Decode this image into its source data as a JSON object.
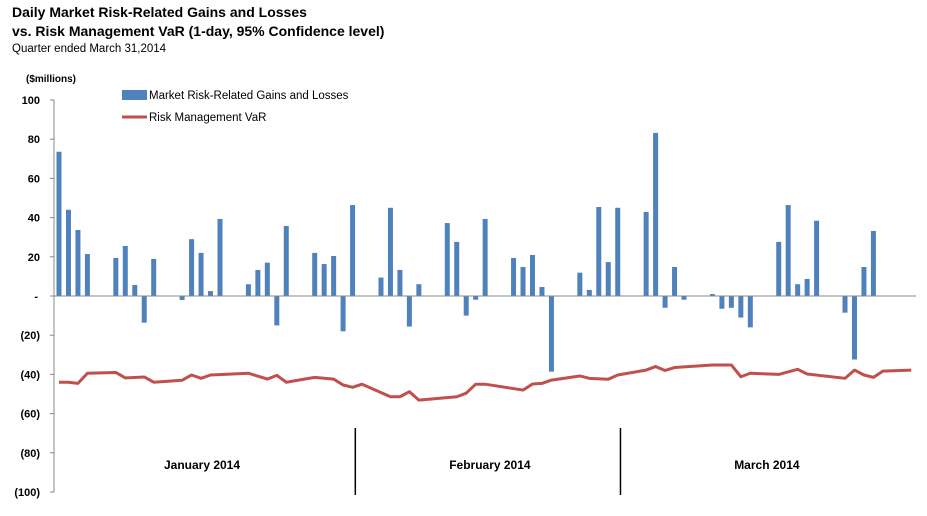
{
  "chart_data": {
    "type": "bar+line",
    "title": "Daily Market Risk-Related Gains and Losses",
    "title_line2": "vs. Risk Management VaR (1-day, 95% Confidence level)",
    "subtitle": "Quarter ended March 31,2014",
    "ylabel": "($millions)",
    "ylim": [
      -100,
      100
    ],
    "yticks": [
      "100",
      "80",
      "60",
      "40",
      "20",
      "-",
      "(20)",
      "(40)",
      "(60)",
      "(80)",
      "(100)"
    ],
    "ytick_values": [
      100,
      80,
      60,
      40,
      20,
      0,
      -20,
      -40,
      -60,
      -80,
      -100
    ],
    "x_slots": 91,
    "months": [
      {
        "label": "January 2014",
        "start": 0,
        "end": 31.5
      },
      {
        "label": "February 2014",
        "start": 31.5,
        "end": 59.5
      },
      {
        "label": "March 2014",
        "start": 59.5,
        "end": 90
      }
    ],
    "legend": {
      "placement": "top-left",
      "entries": [
        "Market Risk-Related Gains and Losses",
        "Risk Management VaR"
      ]
    },
    "series": [
      {
        "name": "Market Risk-Related Gains and Losses",
        "type": "bar",
        "color": "#4f81bd",
        "points": [
          [
            0,
            73.6
          ],
          [
            1,
            44
          ],
          [
            2,
            33.7
          ],
          [
            3,
            21.4
          ],
          [
            6,
            19.4
          ],
          [
            7,
            25.5
          ],
          [
            8,
            5.6
          ],
          [
            9,
            -13.6
          ],
          [
            10,
            18.9
          ],
          [
            13,
            -2
          ],
          [
            14,
            29
          ],
          [
            15,
            22
          ],
          [
            16,
            2.5
          ],
          [
            17,
            39.3
          ],
          [
            20,
            6
          ],
          [
            21,
            13.3
          ],
          [
            22,
            17
          ],
          [
            23,
            -15
          ],
          [
            24,
            35.7
          ],
          [
            27,
            22
          ],
          [
            28,
            16.3
          ],
          [
            29,
            20.4
          ],
          [
            30,
            -18
          ],
          [
            31,
            46.4
          ],
          [
            34,
            9.4
          ],
          [
            35,
            45
          ],
          [
            36,
            13.3
          ],
          [
            37,
            -15.6
          ],
          [
            38,
            6
          ],
          [
            41,
            37.2
          ],
          [
            42,
            27.6
          ],
          [
            43,
            -10
          ],
          [
            44,
            -1.9
          ],
          [
            45,
            39.3
          ],
          [
            48,
            19.4
          ],
          [
            49,
            14.8
          ],
          [
            50,
            20.9
          ],
          [
            51,
            4.6
          ],
          [
            52,
            -38.6
          ],
          [
            55,
            11.9
          ],
          [
            56,
            3.1
          ],
          [
            57,
            45.4
          ],
          [
            58,
            17.3
          ],
          [
            59,
            45
          ],
          [
            62,
            42.9
          ],
          [
            63,
            83.2
          ],
          [
            64,
            -6
          ],
          [
            65,
            14.8
          ],
          [
            66,
            -1.9
          ],
          [
            69,
            1
          ],
          [
            70,
            -6.5
          ],
          [
            71,
            -6
          ],
          [
            72,
            -11
          ],
          [
            73,
            -16
          ],
          [
            76,
            27.6
          ],
          [
            77,
            46.4
          ],
          [
            78,
            6
          ],
          [
            79,
            8.7
          ],
          [
            80,
            38.4
          ],
          [
            83,
            -8.5
          ],
          [
            84,
            -32.4
          ],
          [
            85,
            14.8
          ],
          [
            86,
            33.2
          ]
        ]
      },
      {
        "name": "Risk Management VaR",
        "type": "line",
        "color": "#c0504d",
        "points": [
          [
            0,
            -44
          ],
          [
            1,
            -44
          ],
          [
            2,
            -44.6
          ],
          [
            3,
            -39.4
          ],
          [
            6,
            -39
          ],
          [
            7,
            -41.8
          ],
          [
            9,
            -41.3
          ],
          [
            10,
            -44
          ],
          [
            13,
            -43
          ],
          [
            14,
            -40.3
          ],
          [
            15,
            -42
          ],
          [
            16,
            -40.3
          ],
          [
            20,
            -39.4
          ],
          [
            22,
            -42.4
          ],
          [
            23,
            -40.5
          ],
          [
            24,
            -44
          ],
          [
            27,
            -41.5
          ],
          [
            29,
            -42.4
          ],
          [
            30,
            -45.4
          ],
          [
            31,
            -46.6
          ],
          [
            32,
            -45
          ],
          [
            35,
            -51.4
          ],
          [
            36,
            -51.4
          ],
          [
            37,
            -48.8
          ],
          [
            38,
            -53.1
          ],
          [
            42,
            -51.4
          ],
          [
            43,
            -49.6
          ],
          [
            44,
            -45
          ],
          [
            45,
            -45
          ],
          [
            49,
            -48
          ],
          [
            50,
            -44.9
          ],
          [
            51,
            -44.6
          ],
          [
            52,
            -42.9
          ],
          [
            55,
            -40.8
          ],
          [
            56,
            -42
          ],
          [
            58,
            -42.5
          ],
          [
            59,
            -40.3
          ],
          [
            62,
            -37.8
          ],
          [
            63,
            -36
          ],
          [
            64,
            -38
          ],
          [
            65,
            -36.5
          ],
          [
            69,
            -35.2
          ],
          [
            71,
            -35.2
          ],
          [
            72,
            -41.2
          ],
          [
            73,
            -39.4
          ],
          [
            76,
            -40
          ],
          [
            78,
            -37.4
          ],
          [
            79,
            -39.8
          ],
          [
            83,
            -42
          ],
          [
            84,
            -37.8
          ],
          [
            85,
            -40.3
          ],
          [
            86,
            -41.5
          ],
          [
            87,
            -38.3
          ],
          [
            90,
            -37.8
          ]
        ]
      }
    ]
  }
}
